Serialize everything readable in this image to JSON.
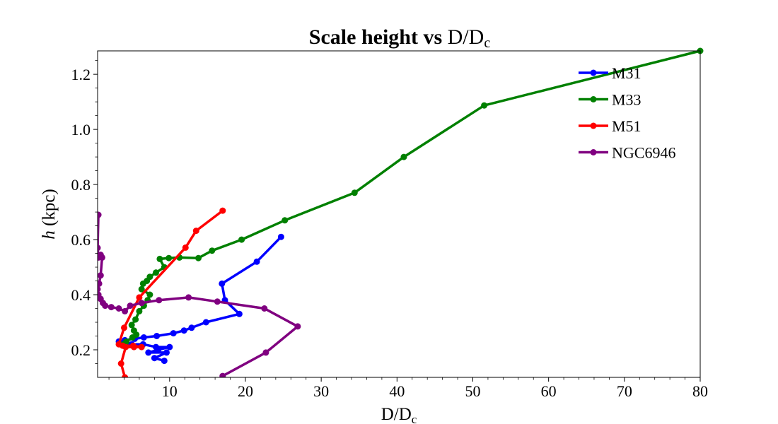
{
  "chart_data": {
    "type": "line",
    "title": {
      "bold": "Scale height vs",
      "main": "D/D",
      "sub": "c"
    },
    "xlabel": {
      "main": "D/D",
      "sub": "c"
    },
    "ylabel": {
      "italic": "h",
      "rest": "(kpc)"
    },
    "xlim": [
      0.5,
      80
    ],
    "ylim": [
      0.1,
      1.285
    ],
    "xticks": [
      10,
      20,
      30,
      40,
      50,
      60,
      70,
      80
    ],
    "yticks": [
      0.2,
      0.4,
      0.6,
      0.8,
      1.0,
      1.2
    ],
    "xtick_labels": [
      "10",
      "20",
      "30",
      "40",
      "50",
      "60",
      "70",
      "80"
    ],
    "ytick_labels": [
      "0.2",
      "0.4",
      "0.6",
      "0.8",
      "1.0",
      "1.2"
    ],
    "grid": false,
    "legend": "top-right",
    "series": [
      {
        "name": "M31",
        "color": "#0000ff",
        "x": [
          24.7,
          21.5,
          16.9,
          17.3,
          19.2,
          14.8,
          12.9,
          11.9,
          10.5,
          8.3,
          6.6,
          5.4,
          4.1,
          3.3,
          3.5,
          5.0,
          6.5,
          8.2,
          10.0,
          8.5,
          7.2,
          9.6,
          8.0,
          9.3
        ],
        "y": [
          0.61,
          0.52,
          0.44,
          0.38,
          0.33,
          0.3,
          0.28,
          0.27,
          0.26,
          0.25,
          0.245,
          0.24,
          0.235,
          0.23,
          0.22,
          0.22,
          0.22,
          0.21,
          0.21,
          0.2,
          0.19,
          0.19,
          0.17,
          0.16
        ]
      },
      {
        "name": "M33",
        "color": "#008000",
        "x": [
          80,
          51.5,
          40.9,
          34.4,
          25.2,
          19.5,
          15.6,
          13.8,
          11.3,
          9.9,
          8.7,
          9.3,
          8.2,
          7.4,
          7.0,
          6.5,
          6.3,
          7.4,
          7.1,
          6.6,
          6.0,
          5.5,
          5.0,
          5.3,
          5.6,
          5.1,
          4.3,
          3.9
        ],
        "y": [
          1.285,
          1.087,
          0.9,
          0.77,
          0.67,
          0.6,
          0.56,
          0.533,
          0.535,
          0.533,
          0.53,
          0.5,
          0.48,
          0.465,
          0.45,
          0.44,
          0.42,
          0.4,
          0.38,
          0.36,
          0.34,
          0.31,
          0.29,
          0.27,
          0.255,
          0.245,
          0.23,
          0.22
        ]
      },
      {
        "name": "M51",
        "color": "#ff0000",
        "x": [
          17.0,
          13.5,
          12.1,
          6.0,
          4.0,
          3.3,
          3.8,
          5.2,
          6.3,
          5.3,
          4.2,
          3.6,
          4.1
        ],
        "y": [
          0.705,
          0.632,
          0.571,
          0.39,
          0.28,
          0.22,
          0.215,
          0.215,
          0.21,
          0.21,
          0.21,
          0.15,
          0.1
        ]
      },
      {
        "name": "NGC6946",
        "color": "#800080",
        "x": [
          0.6,
          0.5,
          0.6,
          0.9,
          1.1,
          0.9,
          0.7,
          0.5,
          0.6,
          0.9,
          1.2,
          1.5,
          2.3,
          3.3,
          4.1,
          4.8,
          6.3,
          8.6,
          12.5,
          16.3,
          22.5,
          26.9,
          22.7,
          17.0
        ],
        "y": [
          0.69,
          0.57,
          0.535,
          0.545,
          0.535,
          0.47,
          0.44,
          0.42,
          0.4,
          0.385,
          0.37,
          0.36,
          0.355,
          0.35,
          0.34,
          0.36,
          0.37,
          0.38,
          0.39,
          0.375,
          0.35,
          0.285,
          0.19,
          0.105
        ]
      }
    ]
  }
}
